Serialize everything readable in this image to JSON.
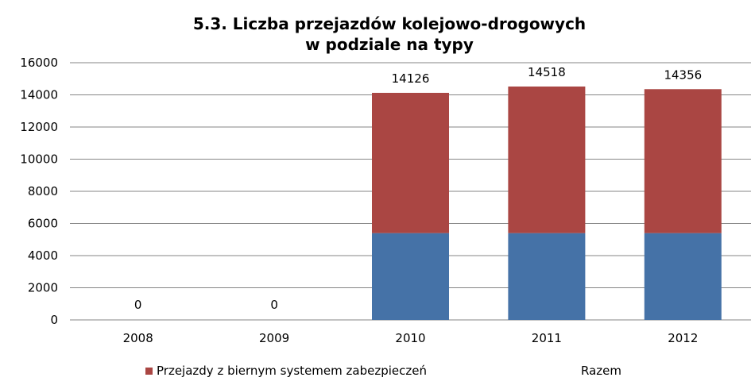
{
  "chart_data": {
    "type": "bar",
    "stacked": true,
    "title": "5.3. Liczba przejazdów kolejowo-drogowych",
    "subtitle": "w podziale na typy",
    "categories": [
      "2008",
      "2009",
      "2010",
      "2011",
      "2012"
    ],
    "series": [
      {
        "name": "",
        "color": "#4572A7",
        "values": [
          0,
          0,
          5400,
          5400,
          5400
        ]
      },
      {
        "name": "Przejazdy z biernym systemem zabezpieczeń",
        "color": "#AA4643",
        "values": [
          0,
          0,
          8726,
          9118,
          8956
        ]
      }
    ],
    "totals_label": "Razem",
    "totals": [
      0,
      0,
      14126,
      14518,
      14356
    ],
    "ylim": [
      0,
      16000
    ],
    "yticks": [
      0,
      2000,
      4000,
      6000,
      8000,
      10000,
      12000,
      14000,
      16000
    ],
    "grid": true,
    "legend_position": "bottom",
    "xlabel": "",
    "ylabel": ""
  }
}
